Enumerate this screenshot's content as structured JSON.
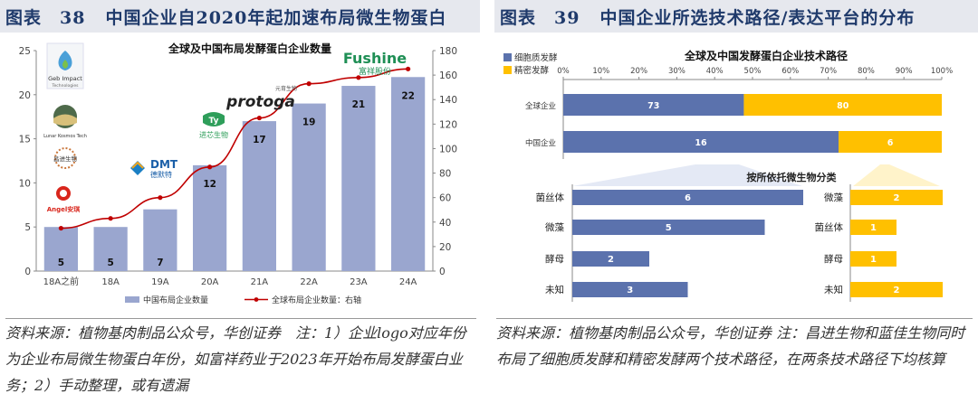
{
  "left": {
    "header": {
      "label": "图表",
      "number": "38",
      "title": "中国企业自2020年起加速布局微生物蛋白"
    },
    "source_note": "资料来源：植物基肉制品公众号，华创证券　注：1）企业logo对应年份为企业布局微生物蛋白年份，如富祥药业于2023年开始布局发酵蛋白业务；2）手动整理，或有遗漏",
    "logos": {
      "geb_impact": "Geb Impact",
      "geb_impact_sub": "Technologies",
      "lunar_kosmos": "Lunar Kosmos Tech",
      "changjin": "昌进生物",
      "angel": "Angel安琪",
      "dmt": "DMT",
      "dmt_cn": "德默特",
      "jinxin": "进芯生物",
      "protoga": "protoga",
      "protoga_cn": "元育生物",
      "fushine": "Fushine",
      "fushine_cn": "富祥股份"
    }
  },
  "right": {
    "header": {
      "label": "图表",
      "number": "39",
      "title": "中国企业所选技术路径/表达平台的分布"
    },
    "source_note": "资料来源：植物基肉制品公众号，华创证券 注：昌进生物和蓝佳生物同时布局了细胞质发酵和精密发酵两个技术路径，在两条技术路径下均核算"
  },
  "chart_data": [
    {
      "type": "bar",
      "title": "全球及中国布局发酵蛋白企业数量",
      "categories": [
        "18A之前",
        "18A",
        "19A",
        "20A",
        "21A",
        "22A",
        "23A",
        "24A"
      ],
      "series": [
        {
          "name": "中国布局企业数量",
          "axis": "left",
          "type": "bar",
          "color": "#9aa6cf",
          "values": [
            5,
            5,
            7,
            12,
            17,
            19,
            21,
            22
          ]
        },
        {
          "name": "全球布局企业数量：右轴",
          "axis": "right",
          "type": "line",
          "color": "#c00000",
          "values": [
            35,
            43,
            60,
            85,
            125,
            153,
            158,
            165
          ]
        }
      ],
      "ylim_left": [
        0,
        25
      ],
      "yticks_left": [
        0,
        5,
        10,
        15,
        20,
        25
      ],
      "ylim_right": [
        0,
        180
      ],
      "yticks_right": [
        0,
        20,
        40,
        60,
        80,
        100,
        120,
        140,
        160,
        180
      ],
      "grid": false,
      "legend": "bottom"
    },
    {
      "type": "bar",
      "title": "全球及中国发酵蛋白企业技术路径",
      "orientation": "horizontal",
      "stacked": "percent",
      "categories": [
        "全球企业",
        "中国企业"
      ],
      "series": [
        {
          "name": "细胞质发酵",
          "color": "#5b72ad",
          "values": [
            73,
            16
          ]
        },
        {
          "name": "精密发酵",
          "color": "#ffc000",
          "values": [
            80,
            6
          ]
        }
      ],
      "xticks": [
        "0%",
        "10%",
        "20%",
        "30%",
        "40%",
        "50%",
        "60%",
        "70%",
        "80%",
        "90%",
        "100%"
      ],
      "legend": "top-left"
    },
    {
      "type": "bar",
      "orientation": "horizontal",
      "title": "按所依托微生物分类",
      "categories": [
        "菌丝体",
        "微藻",
        "酵母",
        "未知"
      ],
      "series": [
        {
          "name": "细胞质发酵",
          "color": "#5b72ad",
          "values": [
            6,
            5,
            2,
            3
          ]
        }
      ]
    },
    {
      "type": "bar",
      "orientation": "horizontal",
      "categories": [
        "微藻",
        "菌丝体",
        "酵母",
        "未知"
      ],
      "series": [
        {
          "name": "精密发酵",
          "color": "#ffc000",
          "values": [
            2,
            1,
            1,
            2
          ]
        }
      ]
    }
  ]
}
